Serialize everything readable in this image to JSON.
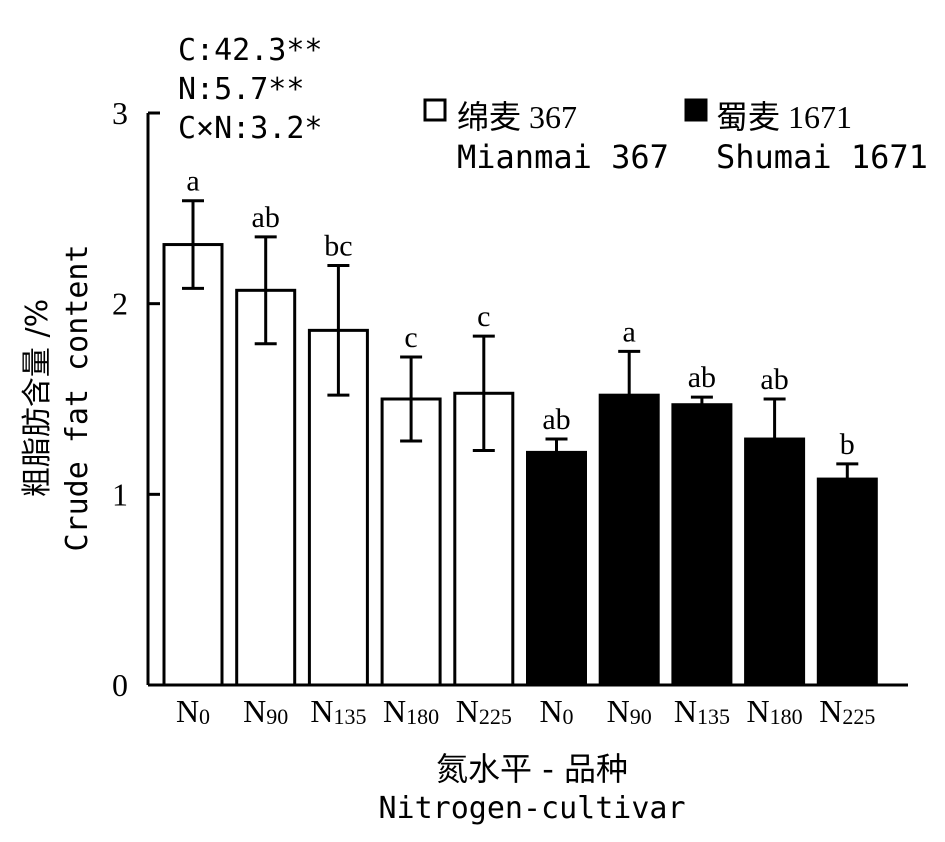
{
  "chart_data": {
    "type": "bar",
    "ylabel_cn": "粗脂肪含量 /%",
    "ylabel_en": "Crude fat content",
    "xlabel_cn": "氮水平 - 品种",
    "xlabel_en": "Nitrogen-cultivar",
    "ylim": [
      0,
      3
    ],
    "yticks": [
      "0",
      "1",
      "2",
      "3"
    ],
    "stats": [
      "C:42.3**",
      "N:5.7**",
      "C×N:3.2*"
    ],
    "categories": [
      {
        "base": "N",
        "sub": "0"
      },
      {
        "base": "N",
        "sub": "90"
      },
      {
        "base": "N",
        "sub": "135"
      },
      {
        "base": "N",
        "sub": "180"
      },
      {
        "base": "N",
        "sub": "225"
      }
    ],
    "series": [
      {
        "name": "绵麦 367",
        "name_en": "Mianmai 367",
        "color": "#ffffff",
        "values": [
          2.31,
          2.07,
          1.86,
          1.5,
          1.53
        ],
        "errors": [
          0.23,
          0.28,
          0.34,
          0.22,
          0.3
        ],
        "letters": [
          "a",
          "ab",
          "bc",
          "c",
          "c"
        ]
      },
      {
        "name": "蜀麦 1671",
        "name_en": "Shumai 1671",
        "color": "#000000",
        "values": [
          1.22,
          1.52,
          1.47,
          1.29,
          1.08
        ],
        "errors": [
          0.07,
          0.23,
          0.04,
          0.21,
          0.08
        ],
        "letters": [
          "ab",
          "a",
          "ab",
          "ab",
          "b"
        ]
      }
    ],
    "legend_position": "top-right",
    "grid": false
  }
}
